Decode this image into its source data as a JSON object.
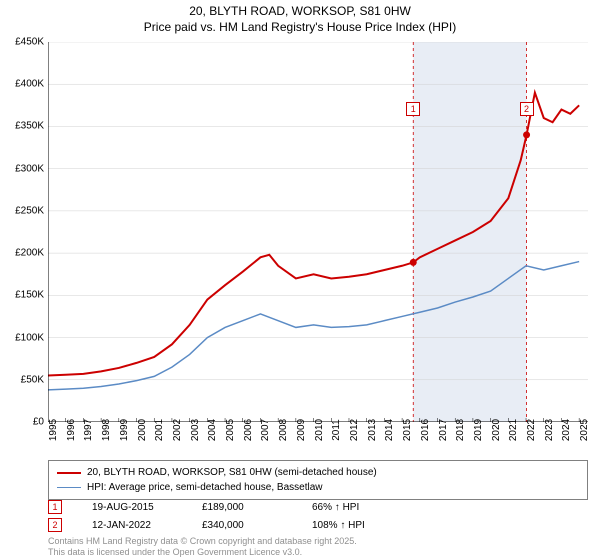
{
  "title_line1": "20, BLYTH ROAD, WORKSOP, S81 0HW",
  "title_line2": "Price paid vs. HM Land Registry's House Price Index (HPI)",
  "chart": {
    "type": "line",
    "background_color": "#ffffff",
    "highlight_band_color": "#e8edf5",
    "highlight_band": {
      "x_start": 2015.63,
      "x_end": 2022.03
    },
    "grid_color": "#d0d0d0",
    "axis_color": "#000000",
    "label_fontsize": 10,
    "xlim": [
      1995,
      2025.5
    ],
    "ylim": [
      0,
      450000
    ],
    "ytick_step": 50000,
    "ytick_labels": [
      "£0",
      "£50K",
      "£100K",
      "£150K",
      "£200K",
      "£250K",
      "£300K",
      "£350K",
      "£400K",
      "£450K"
    ],
    "xticks": [
      1995,
      1996,
      1997,
      1998,
      1999,
      2000,
      2001,
      2002,
      2003,
      2004,
      2005,
      2006,
      2007,
      2008,
      2009,
      2010,
      2011,
      2012,
      2013,
      2014,
      2015,
      2016,
      2017,
      2018,
      2019,
      2020,
      2021,
      2022,
      2023,
      2024,
      2025
    ],
    "series": [
      {
        "name": "20, BLYTH ROAD, WORKSOP, S81 0HW (semi-detached house)",
        "color": "#cc0000",
        "line_width": 2,
        "data": [
          [
            1995,
            55000
          ],
          [
            1996,
            56000
          ],
          [
            1997,
            57000
          ],
          [
            1998,
            60000
          ],
          [
            1999,
            64000
          ],
          [
            2000,
            70000
          ],
          [
            2001,
            77000
          ],
          [
            2002,
            92000
          ],
          [
            2003,
            115000
          ],
          [
            2004,
            145000
          ],
          [
            2005,
            162000
          ],
          [
            2006,
            178000
          ],
          [
            2007,
            195000
          ],
          [
            2007.5,
            198000
          ],
          [
            2008,
            185000
          ],
          [
            2009,
            170000
          ],
          [
            2010,
            175000
          ],
          [
            2011,
            170000
          ],
          [
            2012,
            172000
          ],
          [
            2013,
            175000
          ],
          [
            2014,
            180000
          ],
          [
            2015,
            185000
          ],
          [
            2015.63,
            189000
          ],
          [
            2016,
            195000
          ],
          [
            2017,
            205000
          ],
          [
            2018,
            215000
          ],
          [
            2019,
            225000
          ],
          [
            2020,
            238000
          ],
          [
            2021,
            265000
          ],
          [
            2021.7,
            310000
          ],
          [
            2022.03,
            340000
          ],
          [
            2022.5,
            390000
          ],
          [
            2023,
            360000
          ],
          [
            2023.5,
            355000
          ],
          [
            2024,
            370000
          ],
          [
            2024.5,
            365000
          ],
          [
            2025,
            375000
          ]
        ]
      },
      {
        "name": "HPI: Average price, semi-detached house, Bassetlaw",
        "color": "#5b8bc5",
        "line_width": 1.5,
        "data": [
          [
            1995,
            38000
          ],
          [
            1996,
            39000
          ],
          [
            1997,
            40000
          ],
          [
            1998,
            42000
          ],
          [
            1999,
            45000
          ],
          [
            2000,
            49000
          ],
          [
            2001,
            54000
          ],
          [
            2002,
            65000
          ],
          [
            2003,
            80000
          ],
          [
            2004,
            100000
          ],
          [
            2005,
            112000
          ],
          [
            2006,
            120000
          ],
          [
            2007,
            128000
          ],
          [
            2008,
            120000
          ],
          [
            2009,
            112000
          ],
          [
            2010,
            115000
          ],
          [
            2011,
            112000
          ],
          [
            2012,
            113000
          ],
          [
            2013,
            115000
          ],
          [
            2014,
            120000
          ],
          [
            2015,
            125000
          ],
          [
            2016,
            130000
          ],
          [
            2017,
            135000
          ],
          [
            2018,
            142000
          ],
          [
            2019,
            148000
          ],
          [
            2020,
            155000
          ],
          [
            2021,
            170000
          ],
          [
            2022,
            185000
          ],
          [
            2023,
            180000
          ],
          [
            2024,
            185000
          ],
          [
            2025,
            190000
          ]
        ]
      }
    ],
    "markers": [
      {
        "n": "1",
        "x": 2015.63,
        "y": 189000,
        "color": "#cc0000",
        "label_y_top": 60
      },
      {
        "n": "2",
        "x": 2022.03,
        "y": 340000,
        "color": "#cc0000",
        "label_y_top": 60
      }
    ]
  },
  "legend": {
    "items": [
      {
        "color": "#cc0000",
        "width": 2,
        "label": "20, BLYTH ROAD, WORKSOP, S81 0HW (semi-detached house)"
      },
      {
        "color": "#5b8bc5",
        "width": 1.5,
        "label": "HPI: Average price, semi-detached house, Bassetlaw"
      }
    ]
  },
  "annotations": [
    {
      "n": "1",
      "color": "#cc0000",
      "date": "19-AUG-2015",
      "price": "£189,000",
      "pct": "66% ↑ HPI"
    },
    {
      "n": "2",
      "color": "#cc0000",
      "date": "12-JAN-2022",
      "price": "£340,000",
      "pct": "108% ↑ HPI"
    }
  ],
  "attrib_line1": "Contains HM Land Registry data © Crown copyright and database right 2025.",
  "attrib_line2": "This data is licensed under the Open Government Licence v3.0."
}
